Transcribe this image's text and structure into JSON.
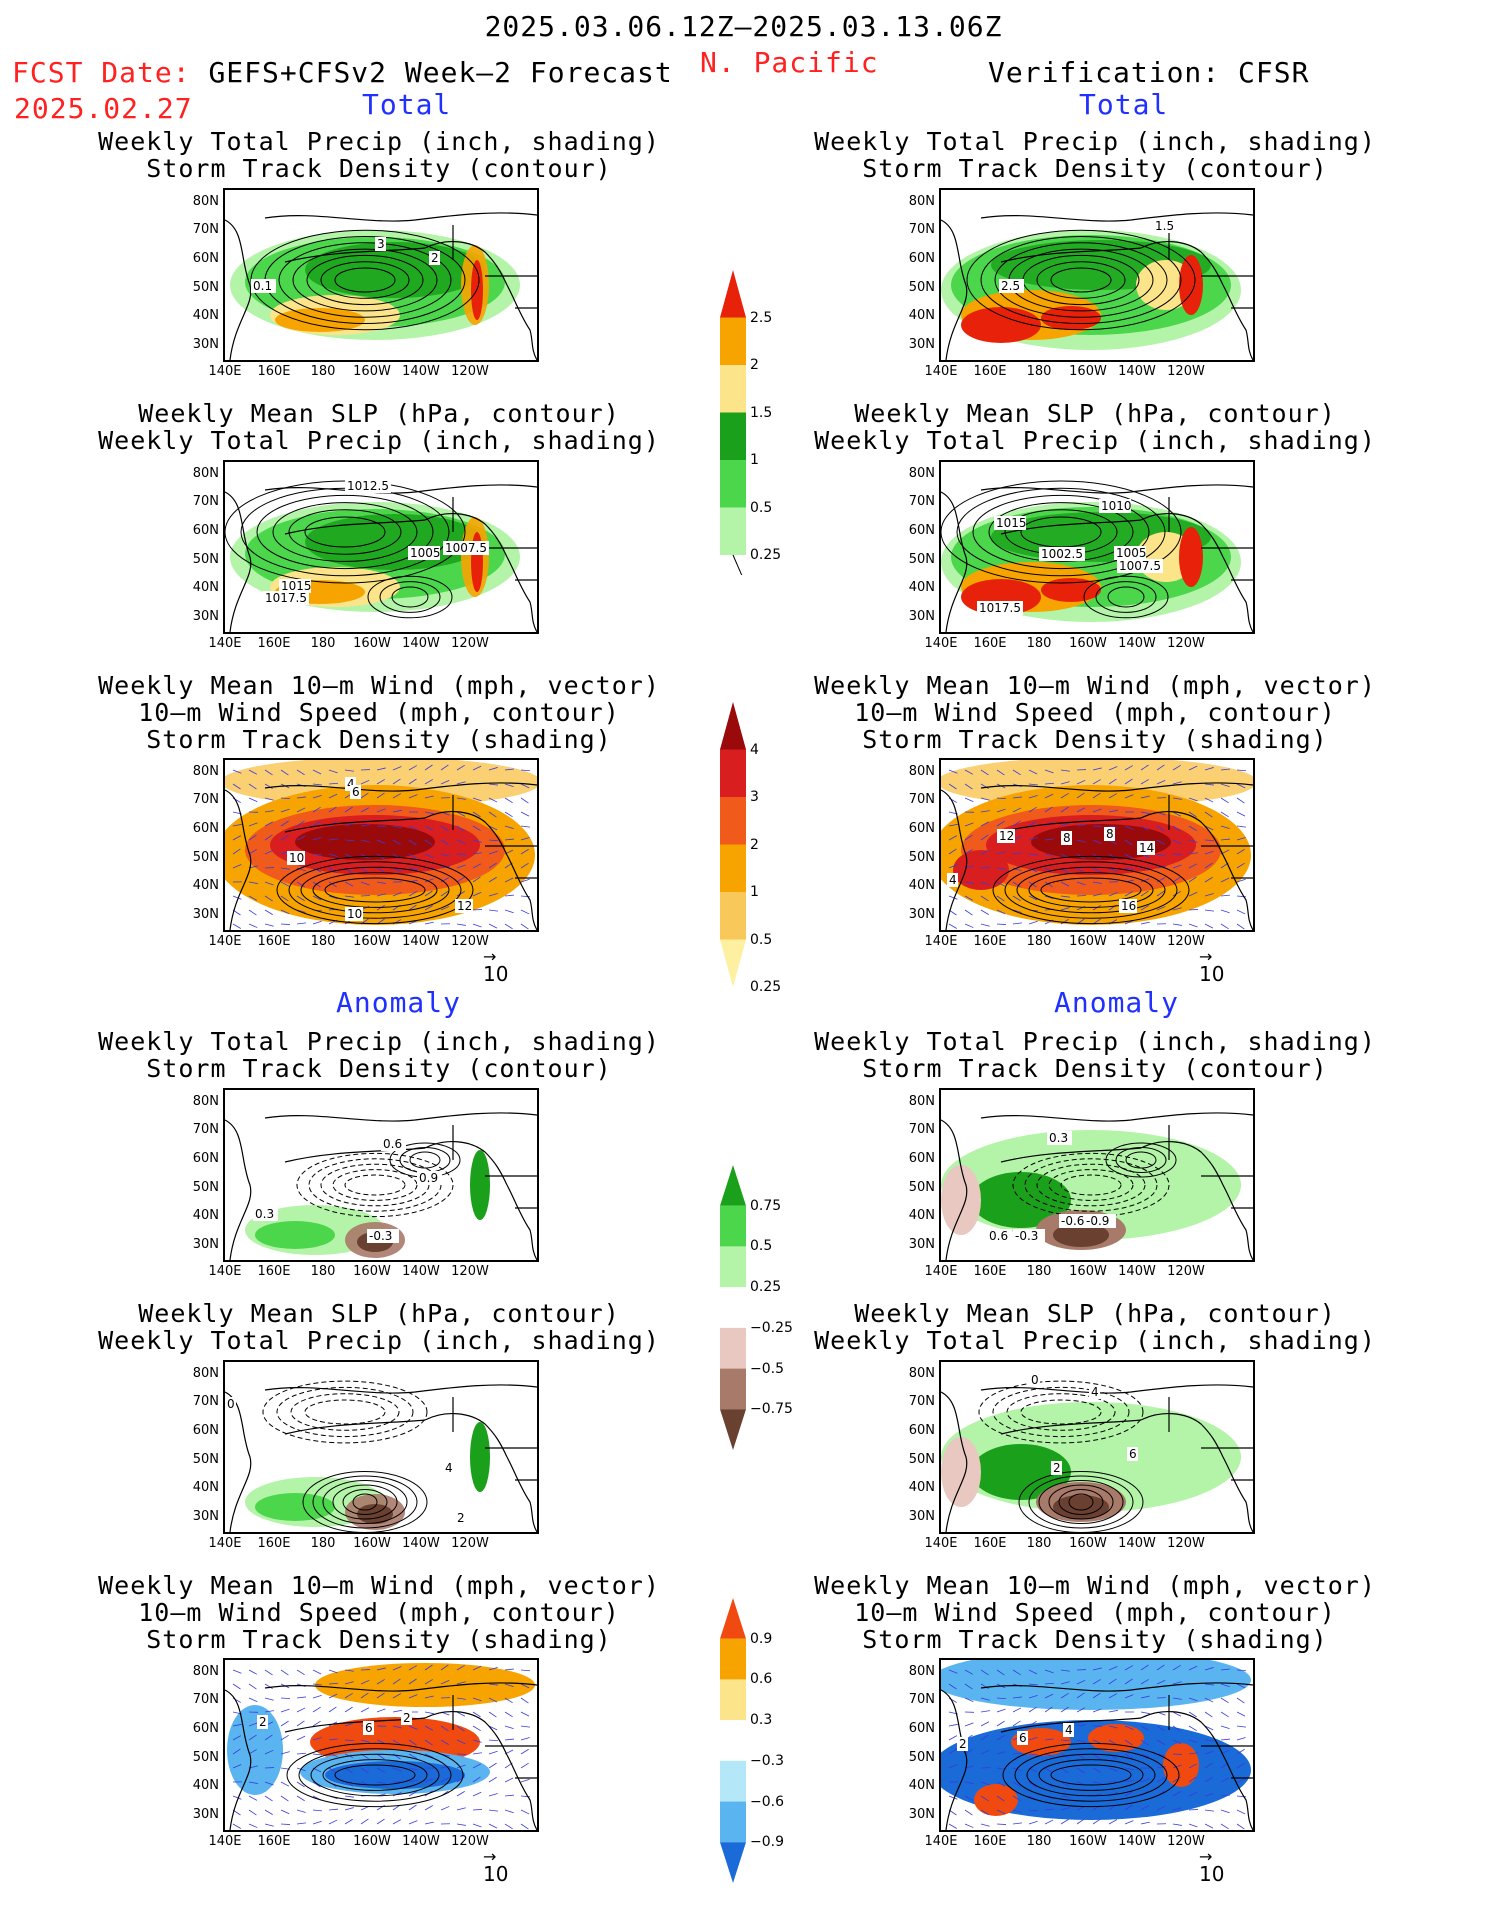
{
  "header": {
    "period": "2025.03.06.12Z–2025.03.13.06Z",
    "region": "N. Pacific",
    "fcst_prefix": "FCST Date:",
    "fcst_model": "GEFS+CFSv2 Week–2 Forecast",
    "fcst_date": "2025.02.27",
    "verification": "Verification: CFSR",
    "total_label": "Total",
    "anomaly_label": "Anomaly"
  },
  "panel_titles": {
    "precip_storm": [
      "Weekly Total Precip (inch, shading)",
      "Storm Track Density (contour)"
    ],
    "slp_precip": [
      "Weekly Mean SLP (hPa, contour)",
      "Weekly Total Precip (inch, shading)"
    ],
    "wind_storm": [
      "Weekly Mean 10–m Wind (mph, vector)",
      "10–m Wind Speed (mph, contour)",
      "Storm Track Density (shading)"
    ]
  },
  "axes": {
    "lat_labels": [
      "80N",
      "70N",
      "60N",
      "50N",
      "40N",
      "30N"
    ],
    "lon_labels": [
      "140E",
      "160E",
      "180",
      "160W",
      "140W",
      "120W"
    ],
    "vector_ref": "10"
  },
  "colorbars": {
    "precip_total": {
      "labels": [
        "2.5",
        "2",
        "1.5",
        "1",
        "0.5",
        "0.25"
      ],
      "colors": [
        "#e8220a",
        "#f7a400",
        "#fce48a",
        "#1aa01a",
        "#4cd64c",
        "#b4f4a8"
      ]
    },
    "storm_total": {
      "labels": [
        "4",
        "3",
        "2",
        "1",
        "0.5",
        "0.25"
      ],
      "colors": [
        "#9a0a0a",
        "#d81e1e",
        "#f05a1a",
        "#f7a400",
        "#f9c85a",
        "#fdf0a0"
      ]
    },
    "precip_anom": {
      "labels": [
        "0.75",
        "0.5",
        "0.25",
        "−0.25",
        "−0.5",
        "−0.75"
      ],
      "colors": [
        "#1aa01a",
        "#4cd64c",
        "#b4f4a8",
        "#ffffff",
        "#e8c8c0",
        "#a87a6a",
        "#6a4030"
      ]
    },
    "storm_anom": {
      "labels": [
        "0.9",
        "0.6",
        "0.3",
        "−0.3",
        "−0.6",
        "−0.9"
      ],
      "colors": [
        "#f04a10",
        "#f7a400",
        "#fce48a",
        "#ffffff",
        "#b4e8f8",
        "#5ab4f0",
        "#1a6ad8"
      ]
    }
  },
  "contour_labels": {
    "l1": [
      "3",
      "2",
      "0.1"
    ],
    "r1": [
      "1.5",
      "2.5"
    ],
    "l2": [
      "1012.5",
      "1005",
      "1007.5",
      "1015",
      "1017.5"
    ],
    "r2": [
      "1010",
      "1015",
      "1002.5",
      "1005",
      "1007.5",
      "1017.5"
    ],
    "l3": [
      "4",
      "6",
      "10",
      "10",
      "12"
    ],
    "r3": [
      "12",
      "8",
      "8",
      "14",
      "16",
      "4"
    ],
    "l4": [
      "0.6",
      "0.9",
      "0.3",
      "-0.3"
    ],
    "r4": [
      "0.3",
      "0.6",
      "-0.3",
      "-0.6",
      "-0.9"
    ],
    "l5": [
      "0",
      "4",
      "2"
    ],
    "r5": [
      "0",
      "4",
      "2",
      "6"
    ],
    "l6": [
      "6",
      "2",
      "2"
    ],
    "r6": [
      "2",
      "6",
      "4"
    ]
  }
}
